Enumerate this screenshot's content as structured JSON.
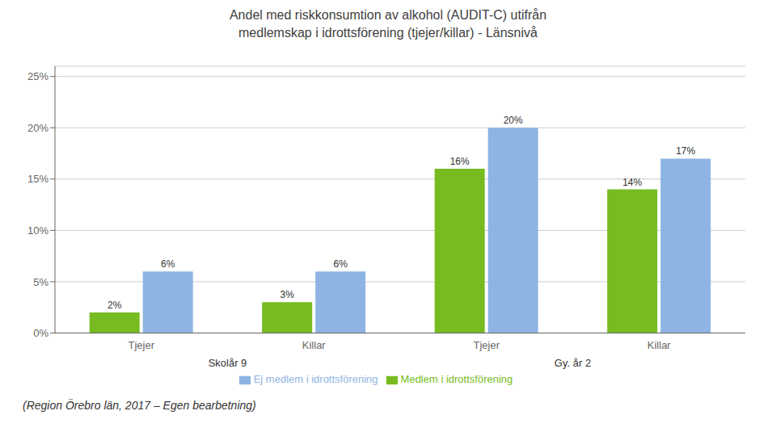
{
  "chart_data": {
    "type": "bar",
    "title": "Andel med riskkonsumtion av alkohol (AUDIT-C) utifrån\nmedlemskap i idrottsförening (tjejer/killar) - Länsnivå",
    "categories": [
      "Tjejer",
      "Killar",
      "Tjejer",
      "Killar"
    ],
    "group_labels": [
      "Skolår 9",
      "Gy. år 2"
    ],
    "series": [
      {
        "name": "Medlem i idrottsförening",
        "color": "#76BC21",
        "values": [
          0.02,
          0.03,
          0.16,
          0.14
        ],
        "value_labels": [
          "2%",
          "3%",
          "16%",
          "14%"
        ]
      },
      {
        "name": "Ej medlem i idrottsförening",
        "color": "#8DB4E2",
        "values": [
          0.06,
          0.06,
          0.2,
          0.17
        ],
        "value_labels": [
          "6%",
          "6%",
          "20%",
          "17%"
        ]
      }
    ],
    "ylim": [
      0,
      0.26
    ],
    "yticks": [
      {
        "value": 0.0,
        "label": "0%"
      },
      {
        "value": 0.05,
        "label": "5%"
      },
      {
        "value": 0.1,
        "label": "10%"
      },
      {
        "value": 0.15,
        "label": "15%"
      },
      {
        "value": 0.2,
        "label": "20%"
      },
      {
        "value": 0.25,
        "label": "25%"
      }
    ],
    "grid": true,
    "legend": "bottom",
    "data_labels": true,
    "footer": "(Region Örebro län, 2017 – Egen bearbetning)"
  }
}
